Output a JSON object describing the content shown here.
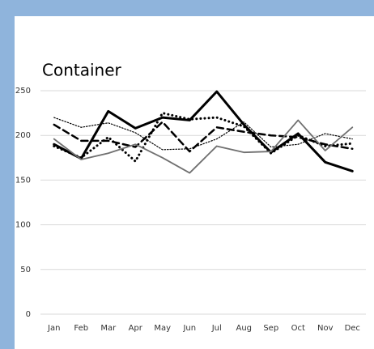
{
  "chart_data": {
    "type": "line",
    "title": "Container",
    "categories": [
      "Jan",
      "Feb",
      "Mar",
      "Apr",
      "May",
      "Jun",
      "Jul",
      "Aug",
      "Sep",
      "Oct",
      "Nov",
      "Dec"
    ],
    "series": [
      {
        "color": "#000000",
        "width": 3,
        "dash": "none",
        "values": [
          190,
          174,
          227,
          208,
          220,
          217,
          249,
          212,
          181,
          202,
          170,
          160
        ]
      },
      {
        "color": "#000000",
        "width": 2.5,
        "dash": "8 5",
        "values": [
          212,
          194,
          194,
          187,
          215,
          182,
          209,
          204,
          200,
          198,
          190,
          185
        ]
      },
      {
        "color": "#000000",
        "width": 3,
        "dash": "0.1 5",
        "values": [
          188,
          175,
          198,
          171,
          225,
          218,
          220,
          210,
          180,
          200,
          188,
          191
        ]
      },
      {
        "color": "#000000",
        "width": 1.2,
        "dash": "1.5 2",
        "values": [
          220,
          209,
          214,
          203,
          184,
          185,
          196,
          215,
          187,
          190,
          202,
          196
        ]
      },
      {
        "color": "#707070",
        "width": 1.8,
        "dash": "none",
        "values": [
          196,
          173,
          180,
          190,
          175,
          158,
          188,
          181,
          182,
          217,
          183,
          209
        ]
      }
    ],
    "ylim": [
      0,
      250
    ],
    "yticks": [
      0,
      50,
      100,
      150,
      200,
      250
    ],
    "grid": true
  }
}
